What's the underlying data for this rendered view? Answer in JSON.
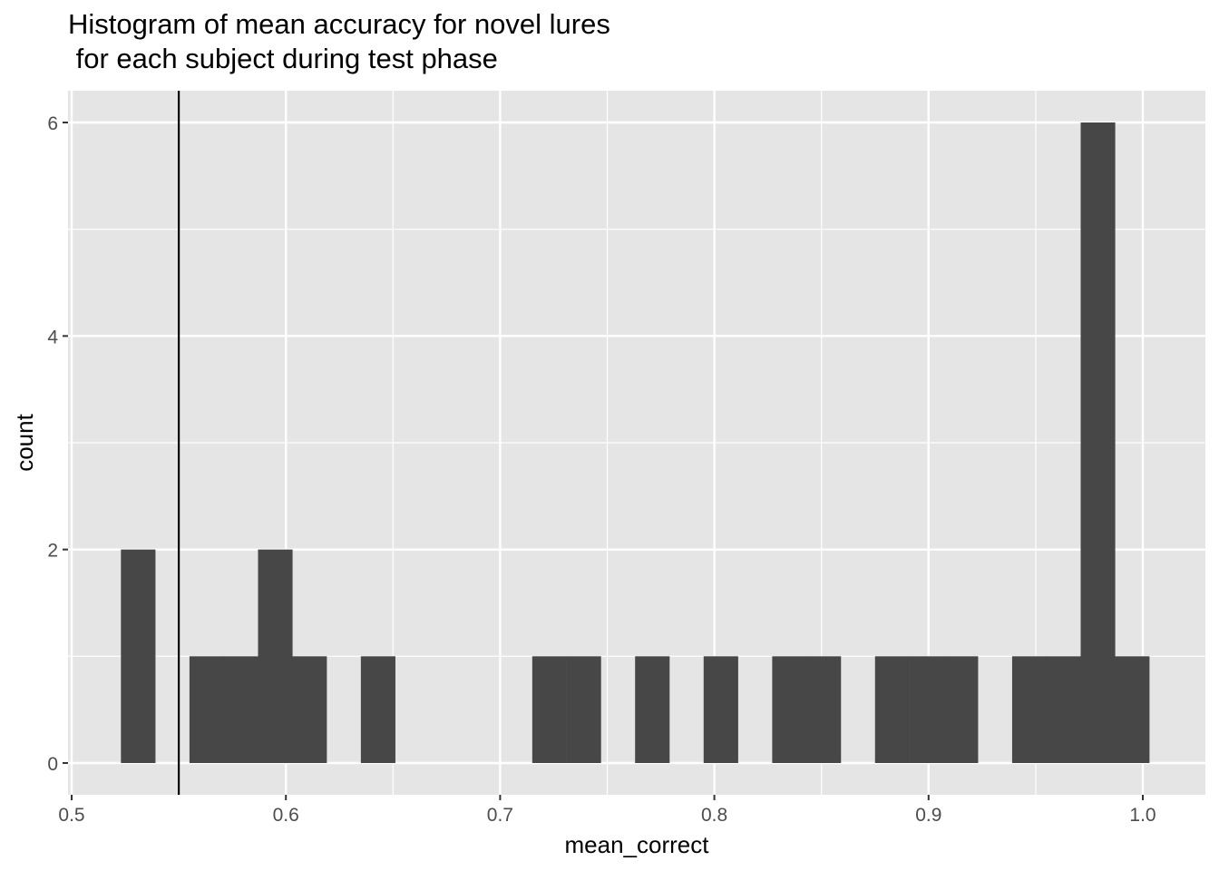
{
  "chart_data": {
    "type": "bar",
    "title": [
      "Histogram of mean accuracy for novel lures",
      " for each subject during test phase"
    ],
    "xlabel": "mean_correct",
    "ylabel": "count",
    "xlim": [
      0.5,
      1.03
    ],
    "ylim": [
      -0.15,
      6.15
    ],
    "x_ticks": [
      0.5,
      0.6,
      0.7,
      0.8,
      0.9,
      1.0
    ],
    "x_tick_labels": [
      "0.5",
      "0.6",
      "0.7",
      "0.8",
      "0.9",
      "1.0"
    ],
    "y_ticks": [
      0,
      2,
      4,
      6
    ],
    "y_tick_labels": [
      "0",
      "2",
      "4",
      "6"
    ],
    "bin_width": 0.016,
    "bins": [
      {
        "x0": 0.523,
        "x1": 0.539,
        "count": 2
      },
      {
        "x0": 0.539,
        "x1": 0.555,
        "count": 0
      },
      {
        "x0": 0.555,
        "x1": 0.571,
        "count": 1
      },
      {
        "x0": 0.571,
        "x1": 0.587,
        "count": 1
      },
      {
        "x0": 0.587,
        "x1": 0.603,
        "count": 2
      },
      {
        "x0": 0.603,
        "x1": 0.619,
        "count": 1
      },
      {
        "x0": 0.619,
        "x1": 0.635,
        "count": 0
      },
      {
        "x0": 0.635,
        "x1": 0.651,
        "count": 1
      },
      {
        "x0": 0.651,
        "x1": 0.667,
        "count": 0
      },
      {
        "x0": 0.667,
        "x1": 0.683,
        "count": 0
      },
      {
        "x0": 0.683,
        "x1": 0.699,
        "count": 0
      },
      {
        "x0": 0.699,
        "x1": 0.715,
        "count": 0
      },
      {
        "x0": 0.715,
        "x1": 0.731,
        "count": 1
      },
      {
        "x0": 0.731,
        "x1": 0.747,
        "count": 1
      },
      {
        "x0": 0.747,
        "x1": 0.763,
        "count": 0
      },
      {
        "x0": 0.763,
        "x1": 0.779,
        "count": 1
      },
      {
        "x0": 0.779,
        "x1": 0.795,
        "count": 0
      },
      {
        "x0": 0.795,
        "x1": 0.811,
        "count": 1
      },
      {
        "x0": 0.811,
        "x1": 0.827,
        "count": 0
      },
      {
        "x0": 0.827,
        "x1": 0.843,
        "count": 1
      },
      {
        "x0": 0.843,
        "x1": 0.859,
        "count": 1
      },
      {
        "x0": 0.859,
        "x1": 0.875,
        "count": 0
      },
      {
        "x0": 0.875,
        "x1": 0.891,
        "count": 1
      },
      {
        "x0": 0.891,
        "x1": 0.907,
        "count": 1
      },
      {
        "x0": 0.907,
        "x1": 0.923,
        "count": 1
      },
      {
        "x0": 0.923,
        "x1": 0.939,
        "count": 0
      },
      {
        "x0": 0.939,
        "x1": 0.955,
        "count": 1
      },
      {
        "x0": 0.955,
        "x1": 0.971,
        "count": 1
      },
      {
        "x0": 0.971,
        "x1": 0.987,
        "count": 6
      },
      {
        "x0": 0.987,
        "x1": 1.003,
        "count": 1
      }
    ],
    "vline": {
      "x": 0.55
    },
    "bar_color": "#474747",
    "vline_color": "#000000",
    "panel_color": "#e5e5e5",
    "grid_color": "#ffffff",
    "grid": true,
    "legend": "none"
  }
}
